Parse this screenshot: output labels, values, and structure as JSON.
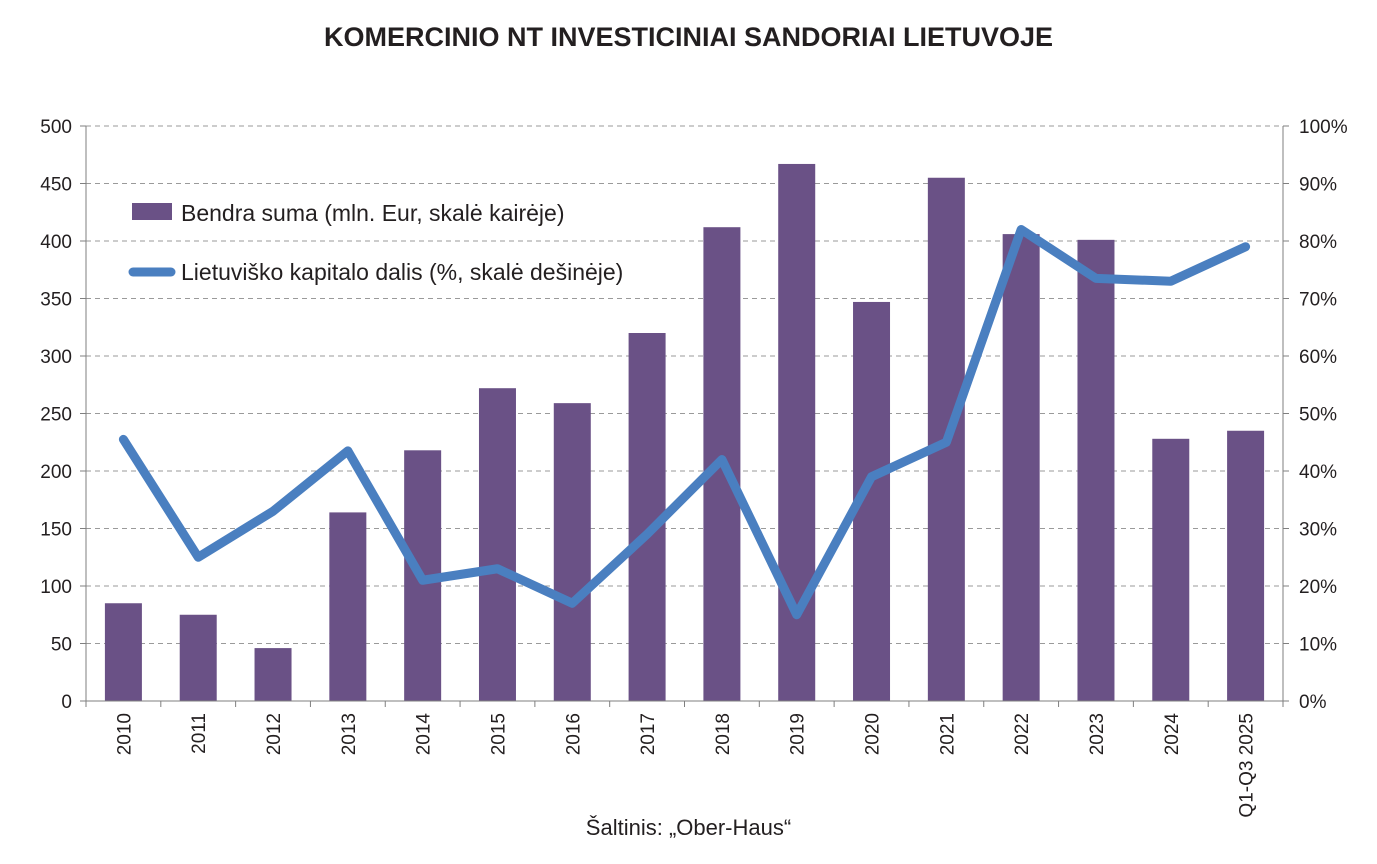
{
  "title": "KOMERCINIO NT INVESTICINIAI SANDORIAI LIETUVOJE",
  "source": "Šaltinis: „Ober-Haus“",
  "colors": {
    "bars": "#6a5186",
    "line": "#4a7fc0",
    "grid": "#9a9a9a",
    "axis": "#7f7f7f"
  },
  "chart_data": {
    "type": "bar",
    "title": "KOMERCINIO NT INVESTICINIAI SANDORIAI LIETUVOJE",
    "categories": [
      "2010",
      "2011",
      "2012",
      "2013",
      "2014",
      "2015",
      "2016",
      "2017",
      "2018",
      "2019",
      "2020",
      "2021",
      "2022",
      "2023",
      "2024",
      "Q1-Q3 2025"
    ],
    "series": [
      {
        "name": "Bendra suma (mln. Eur, skalė kairėje)",
        "type": "bar",
        "axis": "left",
        "values": [
          85,
          75,
          46,
          164,
          218,
          272,
          259,
          320,
          412,
          467,
          347,
          455,
          406,
          401,
          228,
          235
        ]
      },
      {
        "name": "Lietuviško kapitalo dalis (%, skalė dešinėje)",
        "type": "line",
        "axis": "right",
        "values": [
          45.5,
          25,
          33,
          43.5,
          21,
          23,
          17,
          29,
          42,
          15,
          39,
          45,
          82,
          73.5,
          73,
          79
        ]
      }
    ],
    "y_left": {
      "lim": [
        0,
        500
      ],
      "ticks": [
        "0",
        "50",
        "100",
        "150",
        "200",
        "250",
        "300",
        "350",
        "400",
        "450",
        "500"
      ]
    },
    "y_right": {
      "lim": [
        0,
        100
      ],
      "ticks": [
        "0%",
        "10%",
        "20%",
        "30%",
        "40%",
        "50%",
        "60%",
        "70%",
        "80%",
        "90%",
        "100%"
      ]
    },
    "grid": true,
    "legend_position": "top-left"
  }
}
